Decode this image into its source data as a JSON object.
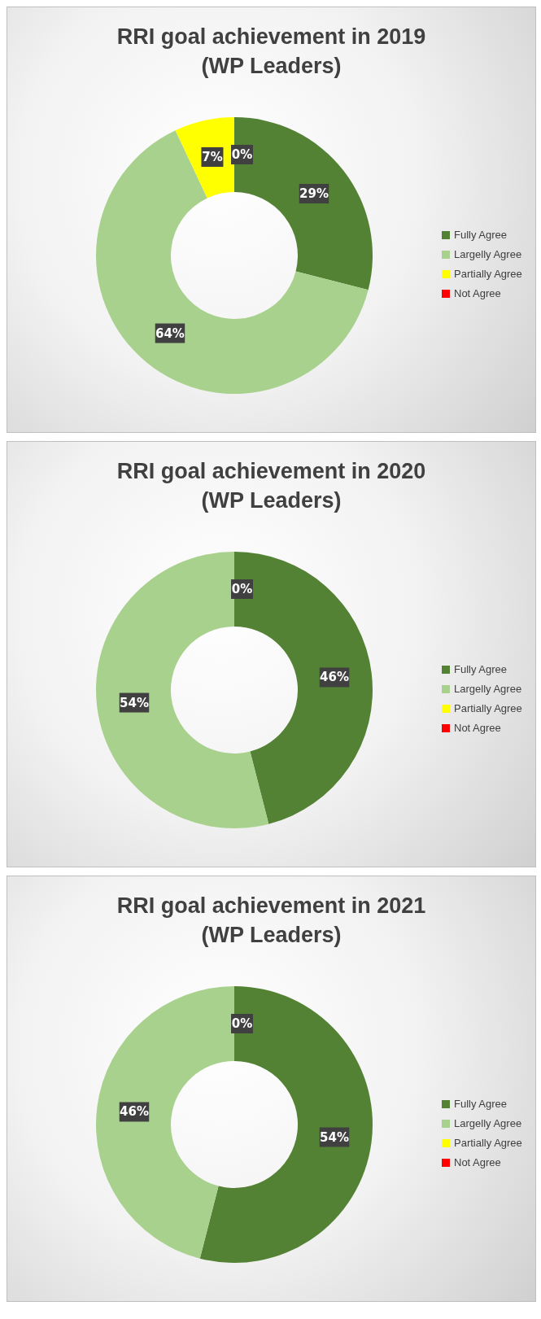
{
  "chart_data": [
    {
      "type": "donut",
      "title": "RRI goal achievement in 2019\n(WP Leaders)",
      "categories": [
        "Fully Agree",
        "Largelly Agree",
        "Partially Agree",
        "Not Agree"
      ],
      "values": [
        29,
        64,
        7,
        0
      ],
      "colors": [
        "#548235",
        "#a9d18e",
        "#ffff00",
        "#ff0000"
      ],
      "value_labels": [
        "29%",
        "64%",
        "7%",
        "0%"
      ],
      "legend": "right"
    },
    {
      "type": "donut",
      "title": "RRI goal achievement in 2020\n(WP Leaders)",
      "categories": [
        "Fully Agree",
        "Largelly Agree",
        "Partially Agree",
        "Not Agree"
      ],
      "values": [
        46,
        54,
        0,
        0
      ],
      "colors": [
        "#548235",
        "#a9d18e",
        "#ffff00",
        "#ff0000"
      ],
      "value_labels": [
        "46%",
        "54%",
        "0%",
        null
      ],
      "legend": "right"
    },
    {
      "type": "donut",
      "title": "RRI goal achievement in 2021\n(WP Leaders)",
      "categories": [
        "Fully Agree",
        "Largelly Agree",
        "Partially Agree",
        "Not Agree"
      ],
      "values": [
        54,
        46,
        0,
        0
      ],
      "colors": [
        "#548235",
        "#a9d18e",
        "#ffff00",
        "#ff0000"
      ],
      "value_labels": [
        "54%",
        "46%",
        "0%",
        null
      ],
      "legend": "right"
    }
  ]
}
